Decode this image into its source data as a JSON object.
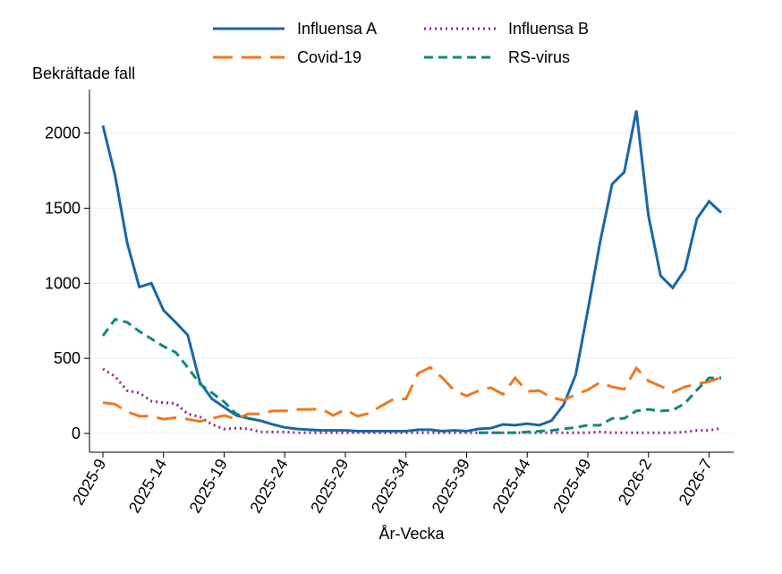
{
  "chart_data": {
    "type": "line",
    "y_label": "Bekräftade fall",
    "x_label": "År-Vecka",
    "categories": [
      "2025-9",
      null,
      null,
      null,
      null,
      "2025-14",
      null,
      null,
      null,
      null,
      "2025-19",
      null,
      null,
      null,
      null,
      "2025-24",
      null,
      null,
      null,
      null,
      "2025-29",
      null,
      null,
      null,
      null,
      "2025-34",
      null,
      null,
      null,
      null,
      "2025-39",
      null,
      null,
      null,
      null,
      "2025-44",
      null,
      null,
      null,
      null,
      "2025-49",
      null,
      null,
      null,
      null,
      "2026-2",
      null,
      null,
      null,
      null,
      "2026-7",
      null
    ],
    "ylim": [
      -125,
      2290
    ],
    "yticks": [
      0,
      500,
      1000,
      1500,
      2000
    ],
    "grid": true,
    "legend": "top",
    "series": [
      {
        "name": "Influensa A",
        "color": "#1a66a8",
        "dash": "solid",
        "values": [
          2050,
          1720,
          1270,
          975,
          1000,
          820,
          740,
          655,
          340,
          230,
          175,
          120,
          100,
          85,
          60,
          40,
          30,
          25,
          20,
          20,
          20,
          15,
          15,
          15,
          15,
          15,
          25,
          25,
          15,
          20,
          15,
          30,
          35,
          60,
          55,
          65,
          55,
          85,
          190,
          390,
          820,
          1270,
          1660,
          1740,
          2150,
          1450,
          1050,
          970,
          1090,
          1430,
          1545,
          1470
        ]
      },
      {
        "name": "Influensa B",
        "color": "#8b2a8b",
        "dash": "dotted",
        "values": [
          430,
          380,
          285,
          270,
          215,
          205,
          200,
          130,
          110,
          60,
          30,
          35,
          30,
          10,
          10,
          10,
          5,
          5,
          5,
          5,
          5,
          5,
          5,
          5,
          5,
          5,
          5,
          5,
          5,
          5,
          5,
          5,
          5,
          5,
          5,
          5,
          5,
          5,
          5,
          5,
          5,
          10,
          5,
          5,
          5,
          5,
          5,
          5,
          10,
          20,
          20,
          35
        ]
      },
      {
        "name": "Covid-19",
        "color": "#f07820",
        "dash": "longdash",
        "values": [
          205,
          195,
          145,
          115,
          115,
          95,
          105,
          95,
          80,
          100,
          120,
          95,
          130,
          130,
          150,
          150,
          160,
          160,
          165,
          120,
          160,
          115,
          135,
          185,
          230,
          230,
          400,
          440,
          370,
          285,
          250,
          285,
          305,
          260,
          370,
          280,
          285,
          240,
          220,
          260,
          290,
          340,
          310,
          295,
          435,
          350,
          315,
          275,
          310,
          330,
          345,
          375
        ]
      },
      {
        "name": "RS-virus",
        "color": "#0f8a7a",
        "dash": "dashed",
        "values": [
          650,
          760,
          740,
          680,
          630,
          580,
          540,
          440,
          330,
          270,
          210,
          130,
          100,
          null,
          null,
          null,
          null,
          null,
          null,
          null,
          null,
          null,
          null,
          null,
          null,
          null,
          null,
          null,
          null,
          null,
          null,
          5,
          5,
          5,
          5,
          10,
          15,
          20,
          30,
          40,
          55,
          55,
          100,
          100,
          150,
          160,
          150,
          155,
          200,
          290,
          370,
          370
        ]
      }
    ]
  }
}
